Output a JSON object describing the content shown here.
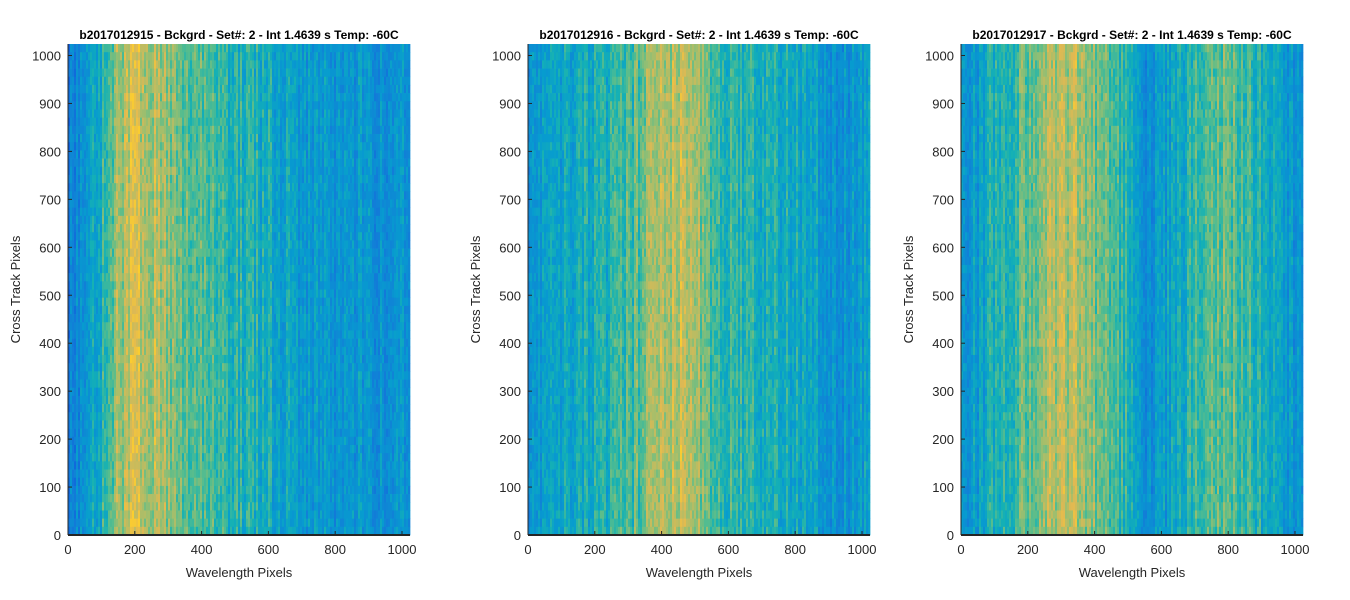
{
  "chart_data": [
    {
      "type": "heatmap",
      "title": "b2017012915 - Bckgrd - Set#: 2 - Int 1.4639 s Temp: -60C",
      "xlabel": "Wavelength Pixels",
      "ylabel": "Cross Track Pixels",
      "xlim": [
        0,
        1024
      ],
      "ylim": [
        0,
        1024
      ],
      "xticks": [
        0,
        200,
        400,
        600,
        800,
        1000
      ],
      "yticks": [
        0,
        100,
        200,
        300,
        400,
        500,
        600,
        700,
        800,
        900,
        1000
      ],
      "colormap": "parula",
      "column_profile": {
        "x": [
          0,
          50,
          100,
          150,
          200,
          250,
          300,
          350,
          400,
          450,
          500,
          550,
          600,
          650,
          700,
          750,
          800,
          850,
          900,
          950,
          1024
        ],
        "level": [
          0.3,
          0.4,
          0.55,
          0.72,
          0.8,
          0.78,
          0.72,
          0.66,
          0.62,
          0.6,
          0.56,
          0.55,
          0.52,
          0.48,
          0.44,
          0.42,
          0.42,
          0.43,
          0.42,
          0.4,
          0.4
        ]
      }
    },
    {
      "type": "heatmap",
      "title": "b2017012916 - Bckgrd - Set#: 2 - Int 1.4639 s Temp: -60C",
      "xlabel": "Wavelength Pixels",
      "ylabel": "Cross Track Pixels",
      "xlim": [
        0,
        1024
      ],
      "ylim": [
        0,
        1024
      ],
      "xticks": [
        0,
        200,
        400,
        600,
        800,
        1000
      ],
      "yticks": [
        0,
        100,
        200,
        300,
        400,
        500,
        600,
        700,
        800,
        900,
        1000
      ],
      "colormap": "parula",
      "column_profile": {
        "x": [
          0,
          50,
          100,
          150,
          200,
          250,
          300,
          350,
          400,
          450,
          500,
          550,
          600,
          650,
          700,
          750,
          800,
          850,
          900,
          950,
          1024
        ],
        "level": [
          0.36,
          0.44,
          0.48,
          0.5,
          0.52,
          0.55,
          0.6,
          0.68,
          0.76,
          0.8,
          0.74,
          0.64,
          0.58,
          0.56,
          0.56,
          0.54,
          0.5,
          0.46,
          0.42,
          0.4,
          0.46
        ]
      }
    },
    {
      "type": "heatmap",
      "title": "b2017012917 - Bckgrd - Set#: 2 - Int 1.4639 s Temp: -60C",
      "xlabel": "Wavelength Pixels",
      "ylabel": "Cross Track Pixels",
      "xlim": [
        0,
        1024
      ],
      "ylim": [
        0,
        1024
      ],
      "xticks": [
        0,
        200,
        400,
        600,
        800,
        1000
      ],
      "yticks": [
        0,
        100,
        200,
        300,
        400,
        500,
        600,
        700,
        800,
        900,
        1000
      ],
      "colormap": "parula",
      "column_profile": {
        "x": [
          0,
          50,
          100,
          150,
          200,
          250,
          300,
          350,
          400,
          450,
          500,
          550,
          600,
          650,
          700,
          750,
          800,
          850,
          900,
          950,
          1024
        ],
        "level": [
          0.4,
          0.46,
          0.54,
          0.6,
          0.66,
          0.72,
          0.78,
          0.76,
          0.7,
          0.64,
          0.56,
          0.38,
          0.42,
          0.52,
          0.6,
          0.64,
          0.66,
          0.62,
          0.56,
          0.46,
          0.42
        ]
      }
    }
  ]
}
